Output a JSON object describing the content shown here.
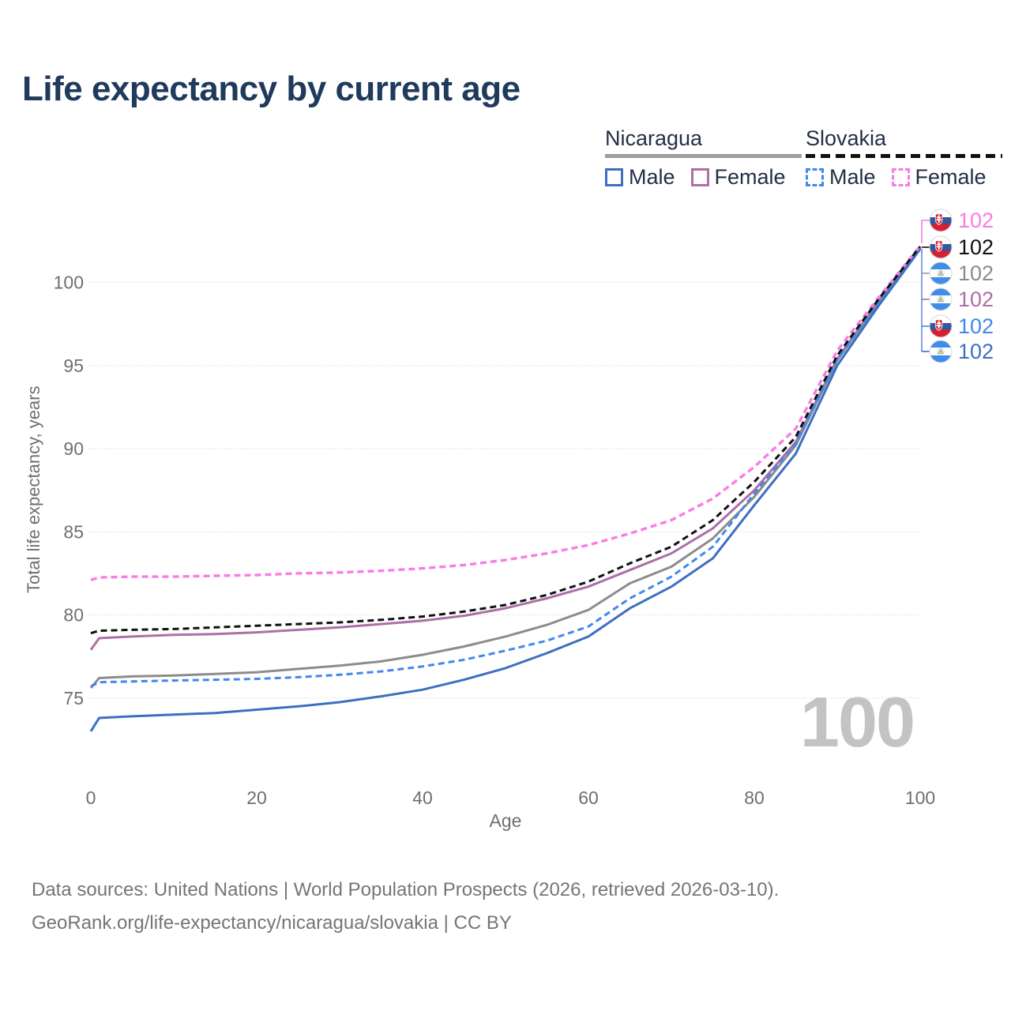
{
  "header": {
    "title": "Life expectancy by current age"
  },
  "legend": {
    "groups": [
      {
        "label": "Nicaragua",
        "line_style": "solid",
        "underline_color": "#9e9e9e",
        "items": [
          {
            "label": "Male",
            "color": "#3d6fc1"
          },
          {
            "label": "Female",
            "color": "#ad6fa6"
          }
        ]
      },
      {
        "label": "Slovakia",
        "line_style": "dashed",
        "underline_color": "#111111",
        "items": [
          {
            "label": "Male",
            "color": "#4287ee"
          },
          {
            "label": "Female",
            "color": "#f97ce5"
          }
        ]
      }
    ]
  },
  "age_ticker": "100",
  "chart_data": {
    "type": "line",
    "title": "Life expectancy by current age",
    "xlabel": "Age",
    "ylabel": "Total life expectancy, years",
    "xlim": [
      0,
      100
    ],
    "ylim": [
      72,
      103
    ],
    "xticks": [
      0,
      20,
      40,
      60,
      80,
      100
    ],
    "yticks": [
      75,
      80,
      85,
      90,
      95,
      100
    ],
    "grid": true,
    "legend_position": "top-right",
    "x": [
      0,
      1,
      5,
      10,
      15,
      20,
      25,
      30,
      35,
      40,
      45,
      50,
      55,
      60,
      65,
      70,
      75,
      80,
      85,
      90,
      95,
      100
    ],
    "series": [
      {
        "name": "Slovakia Female",
        "country": "Slovakia",
        "sex": "Female",
        "flag": "slovakia",
        "color": "#f97ce5",
        "dash": "dashed",
        "end_label": "102",
        "values": [
          82.1,
          82.25,
          82.3,
          82.3,
          82.35,
          82.4,
          82.5,
          82.55,
          82.65,
          82.8,
          83.0,
          83.3,
          83.7,
          84.2,
          84.9,
          85.7,
          87.0,
          88.9,
          91.2,
          95.9,
          99.1,
          102.2
        ]
      },
      {
        "name": "Slovakia",
        "country": "Slovakia",
        "sex": "Both",
        "flag": "slovakia",
        "color": "#111111",
        "dash": "dashed",
        "end_label": "102",
        "values": [
          78.9,
          79.05,
          79.1,
          79.15,
          79.25,
          79.35,
          79.45,
          79.55,
          79.7,
          79.9,
          80.2,
          80.6,
          81.2,
          82.0,
          83.1,
          84.1,
          85.7,
          88.0,
          90.7,
          95.6,
          99.0,
          102.15
        ]
      },
      {
        "name": "Nicaragua",
        "country": "Nicaragua",
        "sex": "Both",
        "flag": "nicaragua",
        "color": "#8c8c8c",
        "dash": "solid",
        "end_label": "102",
        "values": [
          75.6,
          76.2,
          76.3,
          76.35,
          76.45,
          76.55,
          76.75,
          76.95,
          77.2,
          77.6,
          78.1,
          78.7,
          79.4,
          80.3,
          81.9,
          82.9,
          84.6,
          87.1,
          90.2,
          95.3,
          98.8,
          102.05
        ]
      },
      {
        "name": "Nicaragua Female",
        "country": "Nicaragua",
        "sex": "Female",
        "flag": "nicaragua",
        "color": "#ad6fa6",
        "dash": "solid",
        "end_label": "102",
        "values": [
          77.9,
          78.6,
          78.7,
          78.8,
          78.85,
          78.95,
          79.1,
          79.25,
          79.45,
          79.65,
          79.95,
          80.4,
          81.0,
          81.7,
          82.7,
          83.7,
          85.2,
          87.5,
          90.4,
          95.4,
          98.9,
          102.1
        ]
      },
      {
        "name": "Slovakia Male",
        "country": "Slovakia",
        "sex": "Male",
        "flag": "slovakia",
        "color": "#4287ee",
        "dash": "dashed",
        "end_label": "102",
        "values": [
          75.7,
          75.95,
          76.0,
          76.05,
          76.1,
          76.15,
          76.25,
          76.4,
          76.6,
          76.9,
          77.3,
          77.85,
          78.45,
          79.3,
          81.0,
          82.3,
          84.1,
          87.3,
          90.3,
          95.35,
          98.85,
          102.1
        ]
      },
      {
        "name": "Nicaragua Male",
        "country": "Nicaragua",
        "sex": "Male",
        "flag": "nicaragua",
        "color": "#3d6fc1",
        "dash": "solid",
        "end_label": "102",
        "values": [
          73.0,
          73.8,
          73.9,
          74.0,
          74.1,
          74.3,
          74.5,
          74.75,
          75.1,
          75.5,
          76.1,
          76.8,
          77.7,
          78.7,
          80.4,
          81.7,
          83.4,
          86.6,
          89.7,
          95.0,
          98.6,
          102.0
        ]
      }
    ]
  },
  "footer": {
    "line1": "Data sources: United Nations | World Population Prospects (2026, retrieved 2026-03-10).",
    "line2": "GeoRank.org/life-expectancy/nicaragua/slovakia | CC BY"
  }
}
